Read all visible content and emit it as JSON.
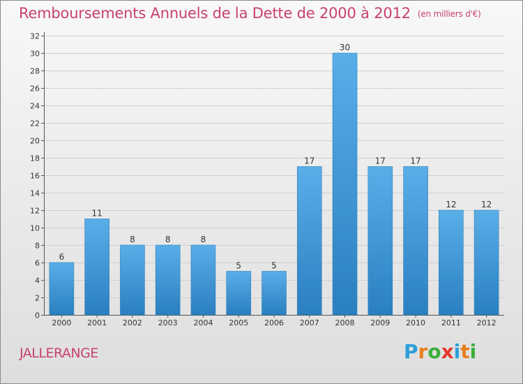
{
  "title": "Remboursements Annuels de la Dette de 2000 à 2012",
  "unit": "(en milliers d'€)",
  "commune": "JALLERANGE",
  "logo": [
    "P",
    "r",
    "o",
    "x",
    "i",
    "t",
    "i"
  ],
  "logo_colors": [
    "#2a9fd8",
    "#e8801e",
    "#3cae3c",
    "#e23a2a",
    "#2a9fd8",
    "#e8801e",
    "#3cae3c"
  ],
  "chart_data": {
    "type": "bar",
    "categories": [
      "2000",
      "2001",
      "2002",
      "2003",
      "2004",
      "2005",
      "2006",
      "2007",
      "2008",
      "2009",
      "2010",
      "2011",
      "2012"
    ],
    "values": [
      6,
      11,
      8,
      8,
      8,
      5,
      5,
      17,
      30,
      17,
      17,
      12,
      12
    ],
    "ylim": [
      0,
      32
    ],
    "yticks": [
      0,
      2,
      4,
      6,
      8,
      10,
      12,
      14,
      16,
      18,
      20,
      22,
      24,
      26,
      28,
      30,
      32
    ],
    "grid": true,
    "bar_color_top": "#5aaee8",
    "bar_color_bottom": "#2a7fc0"
  }
}
